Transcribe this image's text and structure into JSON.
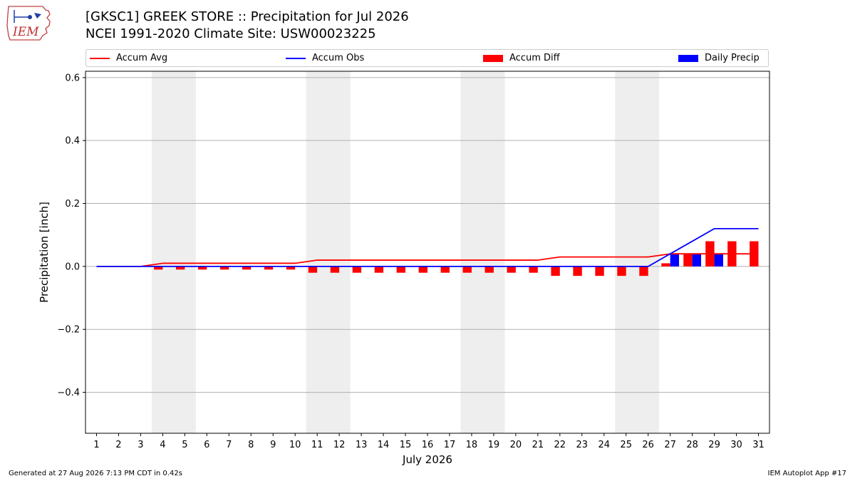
{
  "header": {
    "title_line1": "[GKSC1] GREEK STORE :: Precipitation for Jul 2026",
    "title_line2": "NCEI 1991-2020 Climate Site: USW00023225",
    "logo_text": "IEM"
  },
  "legend": {
    "items": [
      "Accum Avg",
      "Accum Obs",
      "Accum Diff",
      "Daily Precip"
    ]
  },
  "colors": {
    "accum_avg": "#ff0000",
    "accum_obs": "#0000ff",
    "accum_diff": "#ff0000",
    "daily_precip": "#0000ff",
    "weekend_band": "#eeeeee"
  },
  "chart_data": {
    "type": "bar",
    "title": "[GKSC1] GREEK STORE :: Precipitation for Jul 2026",
    "xlabel": "July 2026",
    "ylabel": "Precipitation [inch]",
    "ylim": [
      -0.53,
      0.62
    ],
    "xlim": [
      0.5,
      31.5
    ],
    "yticks": [
      -0.4,
      -0.2,
      0.0,
      0.2,
      0.4,
      0.6
    ],
    "ytick_labels": [
      "−0.4",
      "−0.2",
      "0.0",
      "0.2",
      "0.4",
      "0.6"
    ],
    "categories": [
      1,
      2,
      3,
      4,
      5,
      6,
      7,
      8,
      9,
      10,
      11,
      12,
      13,
      14,
      15,
      16,
      17,
      18,
      19,
      20,
      21,
      22,
      23,
      24,
      25,
      26,
      27,
      28,
      29,
      30,
      31
    ],
    "grid": "horizontal",
    "legend_position": "top",
    "weekend_shading": [
      [
        4,
        5
      ],
      [
        11,
        12
      ],
      [
        18,
        19
      ],
      [
        25,
        26
      ]
    ],
    "series": [
      {
        "name": "Accum Avg",
        "kind": "line",
        "values": [
          0,
          0,
          0,
          0.01,
          0.01,
          0.01,
          0.01,
          0.01,
          0.01,
          0.01,
          0.02,
          0.02,
          0.02,
          0.02,
          0.02,
          0.02,
          0.02,
          0.02,
          0.02,
          0.02,
          0.02,
          0.03,
          0.03,
          0.03,
          0.03,
          0.03,
          0.04,
          0.04,
          0.04,
          0.04,
          0.04
        ]
      },
      {
        "name": "Accum Obs",
        "kind": "line",
        "values": [
          0,
          0,
          0,
          0,
          0,
          0,
          0,
          0,
          0,
          0,
          0,
          0,
          0,
          0,
          0,
          0,
          0,
          0,
          0,
          0,
          0,
          0,
          0,
          0,
          0,
          0,
          0.04,
          0.08,
          0.12,
          0.12,
          0.12
        ]
      },
      {
        "name": "Accum Diff",
        "kind": "bar",
        "values": [
          0,
          0,
          0,
          -0.01,
          -0.01,
          -0.01,
          -0.01,
          -0.01,
          -0.01,
          -0.01,
          -0.02,
          -0.02,
          -0.02,
          -0.02,
          -0.02,
          -0.02,
          -0.02,
          -0.02,
          -0.02,
          -0.02,
          -0.02,
          -0.03,
          -0.03,
          -0.03,
          -0.03,
          -0.03,
          0.01,
          0.04,
          0.08,
          0.08,
          0.08
        ]
      },
      {
        "name": "Daily Precip",
        "kind": "bar",
        "values": [
          0,
          0,
          0,
          0,
          0,
          0,
          0,
          0,
          0,
          0,
          0,
          0,
          0,
          0,
          0,
          0,
          0,
          0,
          0,
          0,
          0,
          0,
          0,
          0,
          0,
          0,
          0.04,
          0.04,
          0.04,
          0,
          0
        ]
      }
    ]
  },
  "footer": {
    "generated": "Generated at 27 Aug 2026 7:13 PM CDT in 0.42s",
    "app": "IEM Autoplot App #17"
  }
}
